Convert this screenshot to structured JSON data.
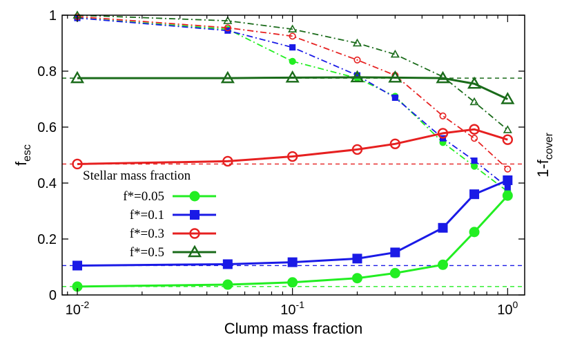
{
  "chart_data": {
    "type": "line",
    "xlabel": "Clump mass fraction",
    "ylabel": "f",
    "ylabel_sub": "esc",
    "ylabel_right": "1-f",
    "ylabel_right_sub": "cover",
    "xscale": "log",
    "xlim": [
      0.0085,
      1.2
    ],
    "ylim": [
      0,
      1
    ],
    "x_ticks": [
      {
        "value": 0.01,
        "base": "10",
        "exp": "-2"
      },
      {
        "value": 0.1,
        "base": "10",
        "exp": "-1"
      },
      {
        "value": 1,
        "base": "10",
        "exp": "0"
      }
    ],
    "y_ticks": [
      "0",
      "0.2",
      "0.4",
      "0.6",
      "0.8",
      "1"
    ],
    "y_tick_values": [
      0,
      0.2,
      0.4,
      0.6,
      0.8,
      1
    ],
    "legend": {
      "title": "Stellar mass fraction",
      "placement": "center-left"
    },
    "series": [
      {
        "name": "f*=0.05",
        "color": "#22ee22",
        "marker": "filled-circle",
        "x": [
          0.01,
          0.05,
          0.1,
          0.2,
          0.3,
          0.5,
          0.7,
          1.0
        ],
        "fesc": [
          0.03,
          0.037,
          0.045,
          0.06,
          0.078,
          0.108,
          0.225,
          0.355
        ],
        "cover": [
          0.99,
          0.95,
          0.835,
          0.775,
          0.71,
          0.545,
          0.46,
          0.37
        ],
        "reference": 0.03
      },
      {
        "name": "f*=0.1",
        "color": "#1a1ae6",
        "marker": "filled-square",
        "x": [
          0.01,
          0.05,
          0.1,
          0.2,
          0.3,
          0.5,
          0.7,
          1.0
        ],
        "fesc": [
          0.105,
          0.11,
          0.117,
          0.13,
          0.152,
          0.24,
          0.36,
          0.41
        ],
        "cover": [
          0.99,
          0.945,
          0.885,
          0.785,
          0.705,
          0.56,
          0.48,
          0.385
        ],
        "reference": 0.105
      },
      {
        "name": "f*=0.3",
        "color": "#e62020",
        "marker": "open-circle",
        "x": [
          0.01,
          0.05,
          0.1,
          0.2,
          0.3,
          0.5,
          0.7,
          1.0
        ],
        "fesc": [
          0.468,
          0.478,
          0.495,
          0.52,
          0.54,
          0.578,
          0.592,
          0.555
        ],
        "cover": [
          0.995,
          0.955,
          0.925,
          0.84,
          0.785,
          0.64,
          0.56,
          0.45
        ],
        "reference": 0.468
      },
      {
        "name": "f*=0.5",
        "color": "#1a6b1a",
        "marker": "open-triangle",
        "x": [
          0.01,
          0.05,
          0.1,
          0.2,
          0.3,
          0.5,
          0.7,
          1.0
        ],
        "fesc": [
          0.775,
          0.775,
          0.777,
          0.778,
          0.777,
          0.775,
          0.755,
          0.7
        ],
        "cover": [
          1.0,
          0.98,
          0.95,
          0.9,
          0.86,
          0.78,
          0.69,
          0.59
        ],
        "reference": 0.775
      }
    ]
  }
}
